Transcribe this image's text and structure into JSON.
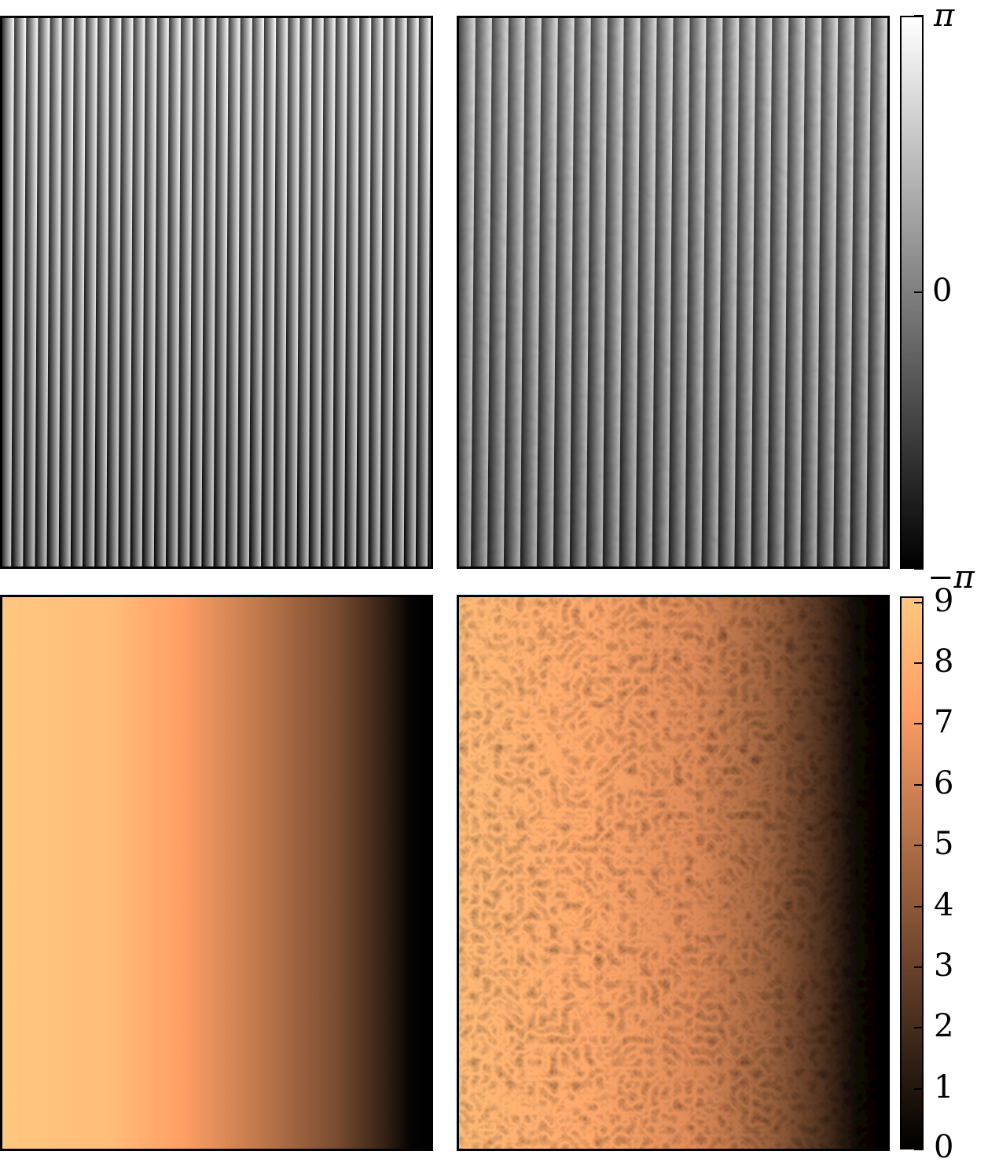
{
  "chart_data": [
    {
      "type": "heatmap",
      "panel": "top-left",
      "colormap": "gray",
      "description_values": "wrapped phase, vertical fringes",
      "fringe_count": 36,
      "clim_label": [
        "-π",
        "π"
      ]
    },
    {
      "type": "heatmap",
      "panel": "top-right",
      "colormap": "gray",
      "description_values": "wrapped phase with speckle noise, vertical fringes",
      "fringe_count": 26,
      "clim_label": [
        "-π",
        "π"
      ]
    },
    {
      "type": "heatmap",
      "panel": "bottom-left",
      "colormap": "copper",
      "description_values": "unwrapped phase, decreasing left to right",
      "clim": [
        0,
        9
      ]
    },
    {
      "type": "heatmap",
      "panel": "bottom-right",
      "colormap": "copper",
      "description_values": "unwrapped phase with speckle noise, decreasing left to right",
      "clim": [
        0,
        9
      ]
    }
  ],
  "colorbar_top": {
    "colormap": "gray",
    "colors": [
      "#000000",
      "#ffffff"
    ],
    "ticks": [
      {
        "value": -3.14159,
        "label": "−π"
      },
      {
        "value": 0,
        "label": "0"
      },
      {
        "value": 3.14159,
        "label": "π"
      }
    ],
    "range": [
      -3.14159,
      3.14159
    ]
  },
  "colorbar_bottom": {
    "colormap": "copper",
    "colors": [
      "#000000",
      "#ffc77f"
    ],
    "ticks": [
      {
        "value": 0,
        "label": "0"
      },
      {
        "value": 1,
        "label": "1"
      },
      {
        "value": 2,
        "label": "2"
      },
      {
        "value": 3,
        "label": "3"
      },
      {
        "value": 4,
        "label": "4"
      },
      {
        "value": 5,
        "label": "5"
      },
      {
        "value": 6,
        "label": "6"
      },
      {
        "value": 7,
        "label": "7"
      },
      {
        "value": 8,
        "label": "8"
      },
      {
        "value": 9,
        "label": "9"
      }
    ],
    "range": [
      0,
      9.1
    ]
  }
}
